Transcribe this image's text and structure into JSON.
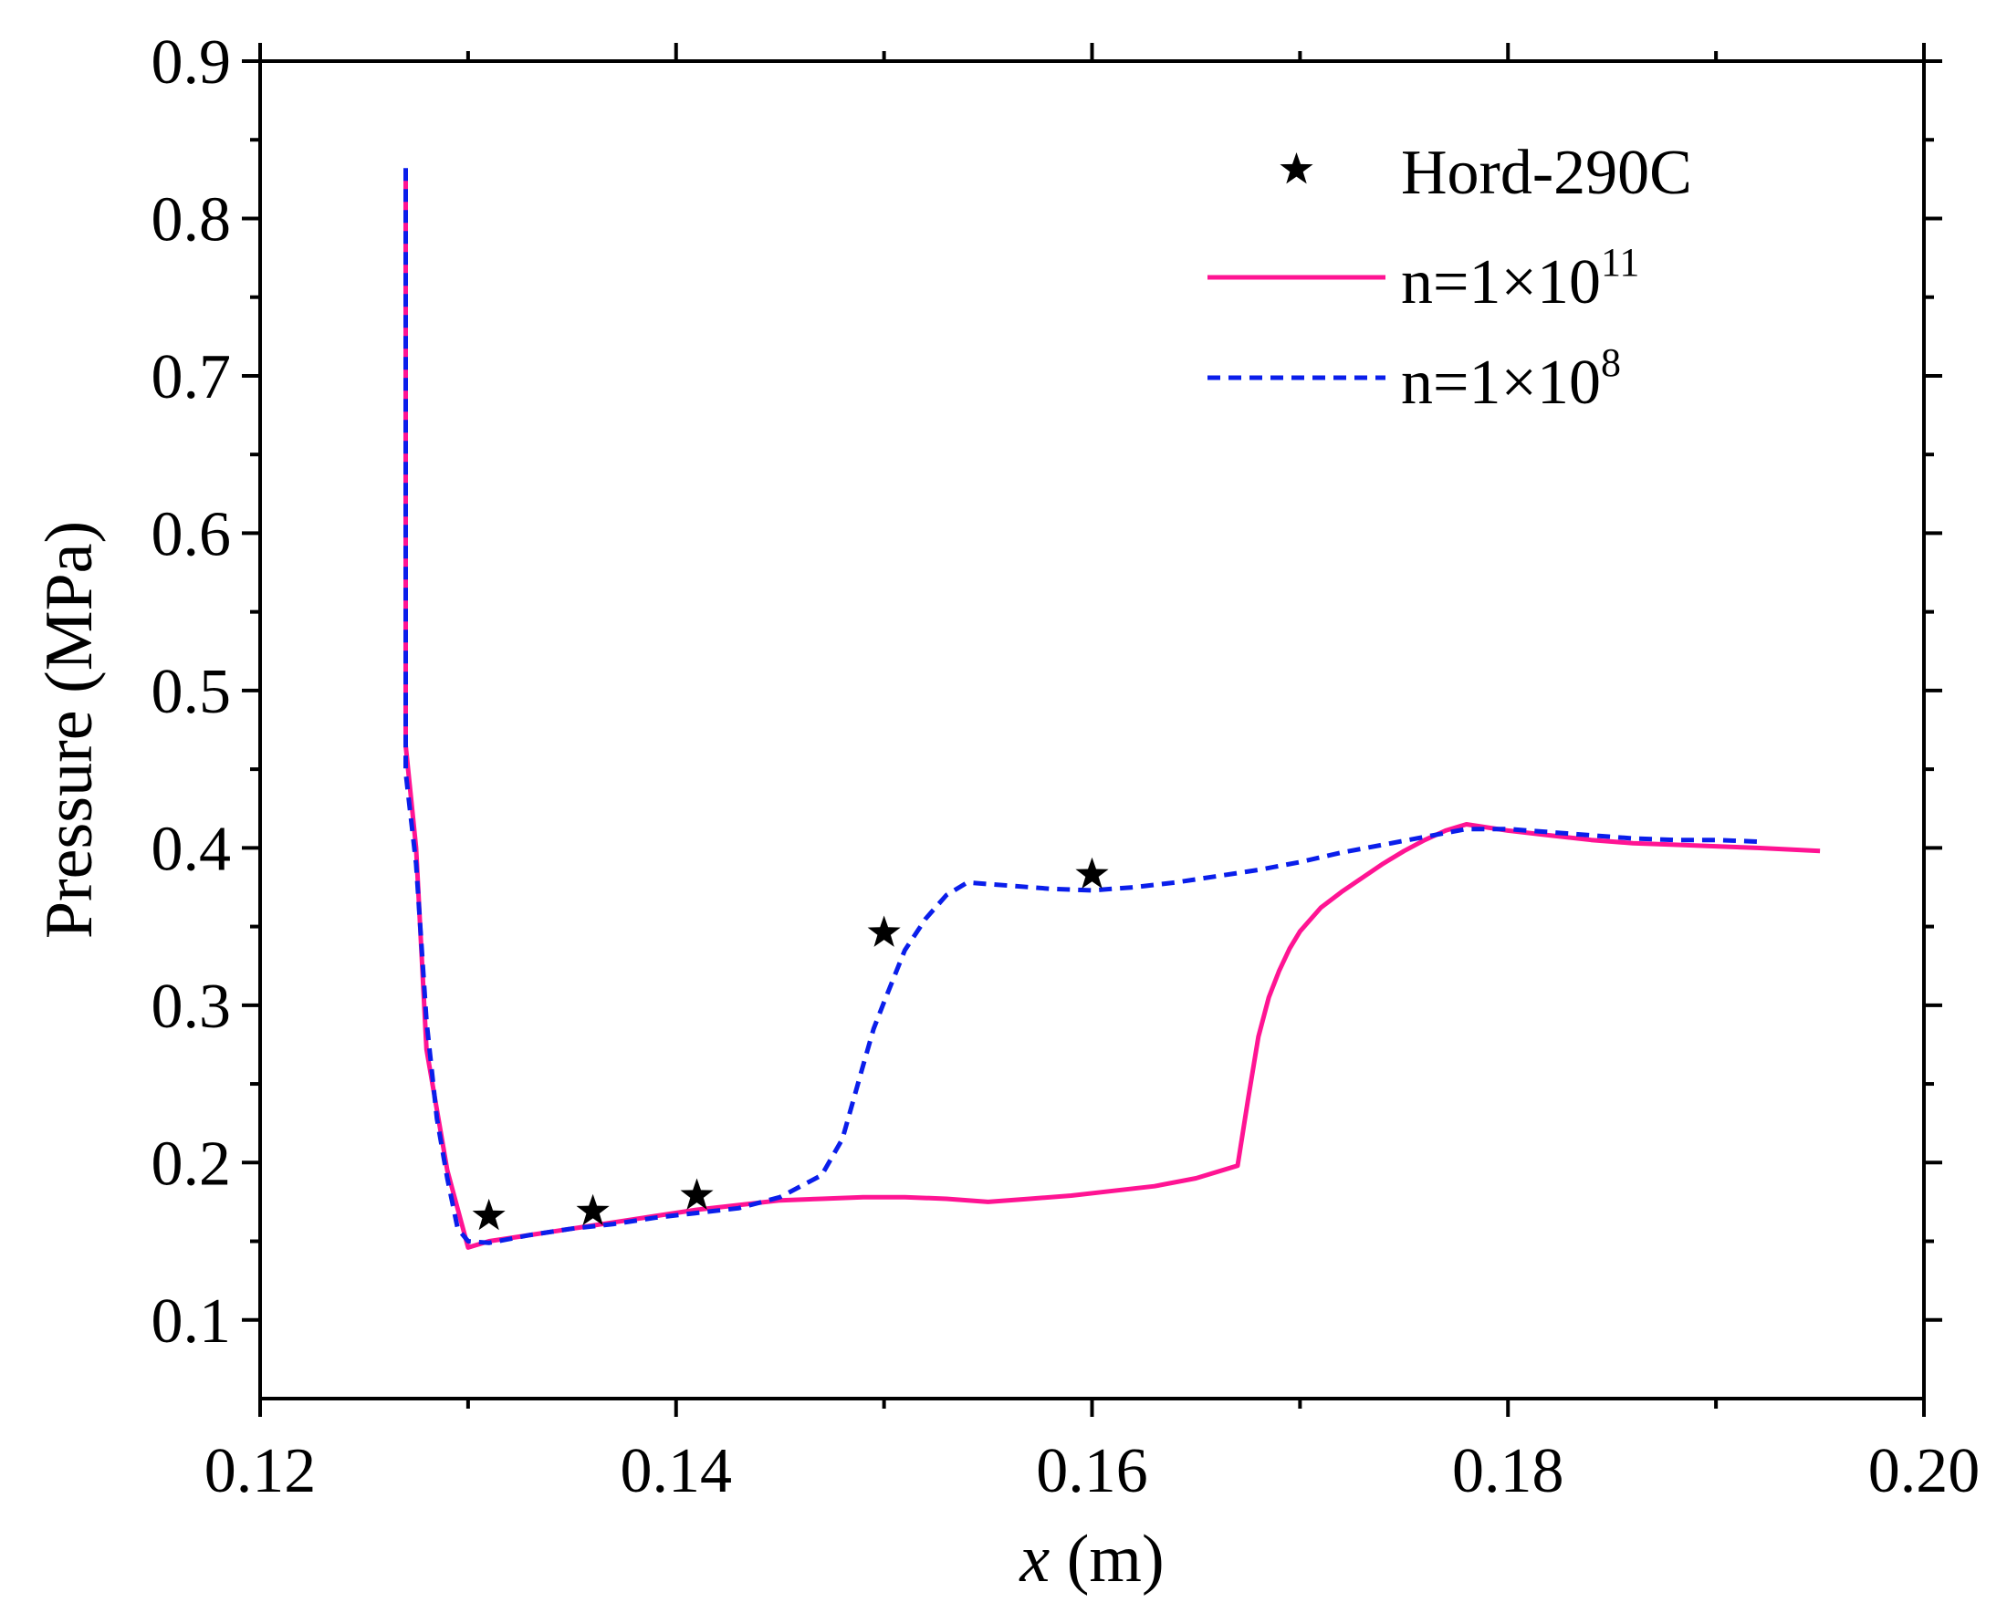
{
  "chart_data": {
    "type": "line",
    "title": "",
    "xlabel_var": "x",
    "xlabel_unit": " (m)",
    "ylabel": "Pressure (MPa)",
    "xlim": [
      0.12,
      0.2
    ],
    "ylim": [
      0.05,
      0.9
    ],
    "x_ticks": [
      0.12,
      0.14,
      0.16,
      0.18,
      0.2
    ],
    "x_tick_labels": [
      "0.12",
      "0.14",
      "0.16",
      "0.18",
      "0.20"
    ],
    "y_ticks": [
      0.1,
      0.2,
      0.3,
      0.4,
      0.5,
      0.6,
      0.7,
      0.8,
      0.9
    ],
    "y_tick_labels": [
      "0.1",
      "0.2",
      "0.3",
      "0.4",
      "0.5",
      "0.6",
      "0.7",
      "0.8",
      "0.9"
    ],
    "grid": false,
    "legend_position": "top-right",
    "series": [
      {
        "name": "Hord-290C",
        "kind": "scatter",
        "marker": "star",
        "color": "#000000",
        "x": [
          0.131,
          0.136,
          0.141,
          0.15,
          0.16
        ],
        "y": [
          0.166,
          0.169,
          0.179,
          0.346,
          0.383
        ]
      },
      {
        "name": "n=1×10",
        "name_sup": "11",
        "kind": "line",
        "style": "solid",
        "color": "#ff1493",
        "x": [
          0.127,
          0.127,
          0.1275,
          0.128,
          0.129,
          0.13,
          0.131,
          0.133,
          0.135,
          0.137,
          0.139,
          0.141,
          0.143,
          0.145,
          0.147,
          0.149,
          0.151,
          0.153,
          0.155,
          0.157,
          0.159,
          0.161,
          0.163,
          0.165,
          0.167,
          0.1675,
          0.168,
          0.1685,
          0.169,
          0.1695,
          0.17,
          0.171,
          0.172,
          0.173,
          0.174,
          0.175,
          0.176,
          0.177,
          0.178,
          0.18,
          0.182,
          0.184,
          0.186,
          0.188,
          0.19,
          0.192,
          0.195
        ],
        "y": [
          0.825,
          0.465,
          0.4,
          0.272,
          0.195,
          0.146,
          0.15,
          0.154,
          0.158,
          0.162,
          0.166,
          0.17,
          0.173,
          0.176,
          0.177,
          0.178,
          0.178,
          0.177,
          0.175,
          0.177,
          0.179,
          0.182,
          0.185,
          0.19,
          0.198,
          0.24,
          0.28,
          0.305,
          0.322,
          0.336,
          0.347,
          0.362,
          0.372,
          0.381,
          0.39,
          0.398,
          0.405,
          0.411,
          0.415,
          0.411,
          0.408,
          0.405,
          0.403,
          0.402,
          0.401,
          0.4,
          0.398
        ]
      },
      {
        "name": "n=1×10",
        "name_sup": "8",
        "kind": "line",
        "style": "dashed",
        "color": "#0a1eeb",
        "x": [
          0.127,
          0.127,
          0.1275,
          0.128,
          0.1285,
          0.129,
          0.1295,
          0.13,
          0.131,
          0.133,
          0.135,
          0.137,
          0.139,
          0.141,
          0.143,
          0.145,
          0.147,
          0.148,
          0.149,
          0.1495,
          0.15,
          0.151,
          0.152,
          0.153,
          0.154,
          0.156,
          0.158,
          0.16,
          0.162,
          0.164,
          0.166,
          0.168,
          0.17,
          0.172,
          0.174,
          0.176,
          0.178,
          0.18,
          0.182,
          0.184,
          0.186,
          0.188,
          0.19,
          0.192
        ],
        "y": [
          0.832,
          0.448,
          0.39,
          0.29,
          0.228,
          0.19,
          0.158,
          0.15,
          0.149,
          0.154,
          0.158,
          0.161,
          0.165,
          0.168,
          0.171,
          0.178,
          0.192,
          0.215,
          0.262,
          0.285,
          0.302,
          0.335,
          0.355,
          0.37,
          0.378,
          0.376,
          0.374,
          0.373,
          0.375,
          0.378,
          0.382,
          0.386,
          0.391,
          0.397,
          0.402,
          0.407,
          0.412,
          0.412,
          0.41,
          0.408,
          0.406,
          0.405,
          0.405,
          0.404
        ]
      }
    ]
  }
}
